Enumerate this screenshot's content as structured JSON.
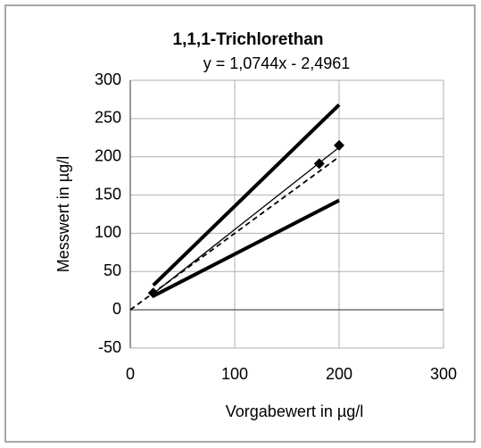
{
  "chart_data": {
    "type": "scatter",
    "title": "1,1,1-Trichlorethan",
    "subtitle": "y = 1,0744x - 2,4961",
    "x_label": "Vorgabewert in µg/l",
    "y_label": "Messwert in µg/l",
    "xlim": [
      0,
      300
    ],
    "xticks": [
      0,
      100,
      200,
      300
    ],
    "ylim": [
      -50,
      300
    ],
    "yticks": [
      -50,
      0,
      50,
      100,
      150,
      200,
      250,
      300
    ],
    "grid": true,
    "series": [
      {
        "color": "#000000",
        "style": "thick",
        "x": [
          22,
          200
        ],
        "values": [
          32,
          268
        ]
      },
      {
        "color": "#000000",
        "style": "thick",
        "x": [
          22,
          200
        ],
        "values": [
          18,
          143
        ]
      },
      {
        "color": "#000000",
        "style": "thin",
        "x": [
          22,
          200
        ],
        "values": [
          21.1,
          212.4
        ]
      },
      {
        "color": "#000000",
        "style": "dashed",
        "x": [
          0,
          200
        ],
        "values": [
          0,
          200
        ]
      },
      {
        "color": "#000000",
        "style": "marker",
        "marker": "diamond",
        "x": [
          22,
          181,
          200
        ],
        "values": [
          22,
          191,
          215
        ]
      }
    ]
  }
}
